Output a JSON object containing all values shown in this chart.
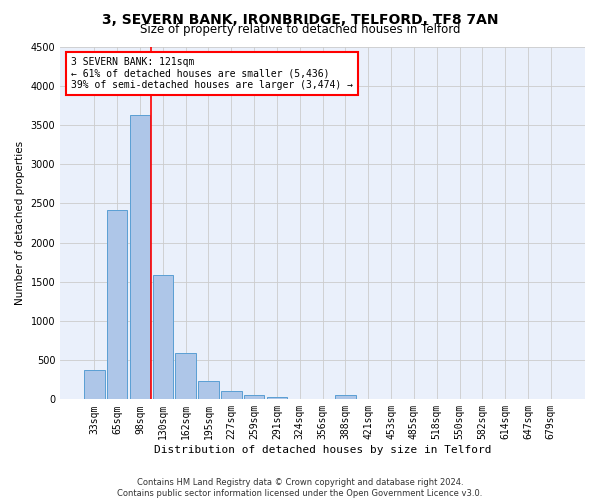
{
  "title": "3, SEVERN BANK, IRONBRIDGE, TELFORD, TF8 7AN",
  "subtitle": "Size of property relative to detached houses in Telford",
  "xlabel": "Distribution of detached houses by size in Telford",
  "ylabel": "Number of detached properties",
  "footer_line1": "Contains HM Land Registry data © Crown copyright and database right 2024.",
  "footer_line2": "Contains public sector information licensed under the Open Government Licence v3.0.",
  "categories": [
    "33sqm",
    "65sqm",
    "98sqm",
    "130sqm",
    "162sqm",
    "195sqm",
    "227sqm",
    "259sqm",
    "291sqm",
    "324sqm",
    "356sqm",
    "388sqm",
    "421sqm",
    "453sqm",
    "485sqm",
    "518sqm",
    "550sqm",
    "582sqm",
    "614sqm",
    "647sqm",
    "679sqm"
  ],
  "values": [
    370,
    2420,
    3620,
    1580,
    590,
    230,
    105,
    60,
    35,
    0,
    0,
    55,
    0,
    0,
    0,
    0,
    0,
    0,
    0,
    0,
    0
  ],
  "bar_color": "#aec6e8",
  "bar_edge_color": "#5a9fd4",
  "grid_color": "#cccccc",
  "background_color": "#eaf0fb",
  "vline_color": "red",
  "annotation_text": "3 SEVERN BANK: 121sqm\n← 61% of detached houses are smaller (5,436)\n39% of semi-detached houses are larger (3,474) →",
  "annotation_box_color": "white",
  "annotation_box_edgecolor": "red",
  "ylim": [
    0,
    4500
  ],
  "yticks": [
    0,
    500,
    1000,
    1500,
    2000,
    2500,
    3000,
    3500,
    4000,
    4500
  ],
  "title_fontsize": 10,
  "subtitle_fontsize": 8.5,
  "xlabel_fontsize": 8,
  "ylabel_fontsize": 7.5,
  "tick_fontsize": 7,
  "footer_fontsize": 6,
  "annotation_fontsize": 7
}
